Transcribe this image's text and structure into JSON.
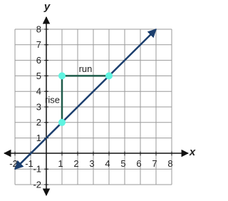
{
  "chart_data": {
    "type": "line",
    "x_label": "x",
    "y_label": "y",
    "xlim": [
      -2,
      8
    ],
    "ylim": [
      -2,
      8
    ],
    "xticks": [
      -2,
      -1,
      1,
      2,
      3,
      4,
      5,
      6,
      7,
      8
    ],
    "yticks": [
      -2,
      -1,
      1,
      2,
      3,
      4,
      5,
      6,
      7,
      8
    ],
    "grid": true,
    "series": [
      {
        "mode": "arrows",
        "color": "#1c3f6e",
        "x": [
          -2,
          7
        ],
        "values": [
          -1,
          8
        ]
      },
      {
        "name": "rise",
        "mode": "segment",
        "color": "#1f5b4a",
        "x": [
          1,
          1
        ],
        "values": [
          2,
          5
        ]
      },
      {
        "name": "run",
        "mode": "segment",
        "color": "#1f5b4a",
        "x": [
          1,
          4
        ],
        "values": [
          5,
          5
        ]
      },
      {
        "mode": "markers",
        "color": "#5ff3e0",
        "x": [
          1,
          1,
          4
        ],
        "values": [
          2,
          5,
          5
        ]
      }
    ]
  }
}
